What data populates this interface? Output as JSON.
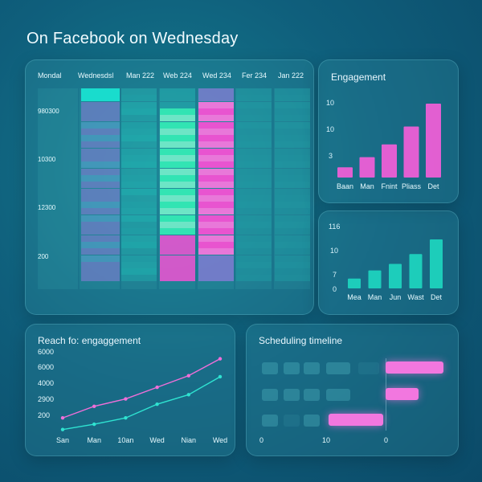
{
  "header": {
    "title": "On Facebook on Wednesday"
  },
  "grid": {
    "columns": [
      "Mondal",
      "Wednesdsl",
      "Man 222",
      "Web 224",
      "Wed 234",
      "Fer 234",
      "Jan 222"
    ],
    "y_labels": [
      "980300",
      "10300",
      "12300",
      "200"
    ],
    "palette": {
      "cyan": "#19e0d0",
      "green": "#36f4b8",
      "pink": "#ff4fd6",
      "purple": "#8d7bd9",
      "teal": "#21b9b5"
    }
  },
  "engagement": {
    "title": "Engagement",
    "chart_data": {
      "type": "bar",
      "categories": [
        "Baan",
        "Man",
        "Fnint",
        "Pliass",
        "Det"
      ],
      "values": [
        2,
        4,
        6.5,
        10,
        14.5
      ],
      "y_tick_labels": [
        "10",
        "10",
        "3"
      ],
      "color": "#ee5fd6"
    }
  },
  "secondary": {
    "chart_data": {
      "type": "bar",
      "categories": [
        "Mea",
        "Man",
        "Jun",
        "Wast",
        "Det"
      ],
      "values": [
        3,
        5.5,
        7.5,
        10.5,
        15
      ],
      "y_tick_labels": [
        "116",
        "10",
        "7",
        "0"
      ],
      "color": "#1fd3be"
    }
  },
  "reach": {
    "title": "Reach fo: engaggement",
    "chart_data": {
      "type": "line",
      "x": [
        "San",
        "Man",
        "10an",
        "Wed",
        "Nian",
        "Wed"
      ],
      "y_tick_labels": [
        "6000",
        "6000",
        "4000",
        "2900",
        "200"
      ],
      "ylim": [
        0,
        7000
      ],
      "series": [
        {
          "values": [
            1200,
            2300,
            3000,
            4100,
            5200,
            6800
          ],
          "color": "#f06fd9"
        },
        {
          "values": [
            100,
            600,
            1200,
            2500,
            3400,
            5100
          ],
          "color": "#2fe3d1"
        }
      ]
    }
  },
  "timeline": {
    "title": "Scheduling timeline",
    "axis": [
      "0",
      "10",
      "0"
    ]
  }
}
